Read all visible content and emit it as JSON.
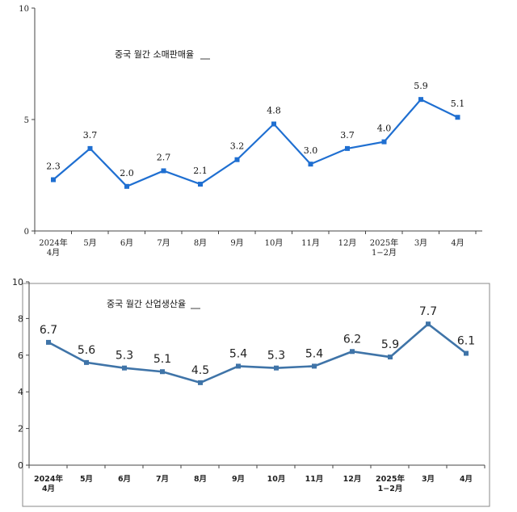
{
  "chart_data": [
    {
      "type": "line",
      "title": "중국 월간 소매판매율",
      "categories": [
        [
          "2024年",
          "4月"
        ],
        [
          "5月"
        ],
        [
          "6月"
        ],
        [
          "7月"
        ],
        [
          "8月"
        ],
        [
          "9月"
        ],
        [
          "10月"
        ],
        [
          "11月"
        ],
        [
          "12月"
        ],
        [
          "2025年",
          "1−2月"
        ],
        [
          "3月"
        ],
        [
          "4月"
        ]
      ],
      "values": [
        2.3,
        3.7,
        2.0,
        2.7,
        2.1,
        3.2,
        4.8,
        3.0,
        3.7,
        4.0,
        5.9,
        5.1
      ],
      "value_labels": [
        "2.3",
        "3.7",
        "2.0",
        "2.7",
        "2.1",
        "3.2",
        "4.8",
        "3.0",
        "3.7",
        "4.0",
        "5.9",
        "5.1"
      ],
      "ylim": [
        0,
        10
      ],
      "yticks": [
        0,
        5,
        10
      ],
      "color": "#1f6fd1",
      "grid": false
    },
    {
      "type": "line",
      "title": "중국 월간 산업생산율",
      "categories": [
        [
          "2024年",
          "4月"
        ],
        [
          "5月"
        ],
        [
          "6月"
        ],
        [
          "7月"
        ],
        [
          "8月"
        ],
        [
          "9月"
        ],
        [
          "10月"
        ],
        [
          "11月"
        ],
        [
          "12月"
        ],
        [
          "2025年",
          "1−2月"
        ],
        [
          "3月"
        ],
        [
          "4月"
        ]
      ],
      "values": [
        6.7,
        5.6,
        5.3,
        5.1,
        4.5,
        5.4,
        5.3,
        5.4,
        6.2,
        5.9,
        7.7,
        6.1
      ],
      "value_labels": [
        "6.7",
        "5.6",
        "5.3",
        "5.1",
        "4.5",
        "5.4",
        "5.3",
        "5.4",
        "6.2",
        "5.9",
        "7.7",
        "6.1"
      ],
      "ylim": [
        0,
        10
      ],
      "yticks": [
        0,
        2,
        4,
        6,
        8,
        10
      ],
      "color": "#3f74a8",
      "grid": false
    }
  ]
}
